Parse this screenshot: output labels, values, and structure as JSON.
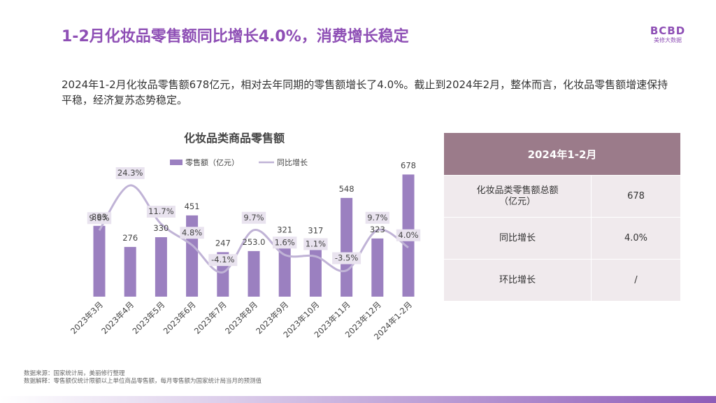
{
  "header": {
    "title": "1-2月化妆品零售额同比增长4.0%，消费增长稳定",
    "logo_mark": "BCBD",
    "logo_sub": "美修大数据"
  },
  "description": "2024年1-2月化妆品零售额678亿元，相对去年同期的零售额增长了4.0%。截止到2024年2月，整体而言，化妆品零售额增速保持平稳，经济复苏态势稳定。",
  "chart_data": {
    "type": "bar+line",
    "title": "化妆品类商品零售额",
    "categories": [
      "2023年3月",
      "2023年4月",
      "2023年5月",
      "2023年6月",
      "2023年7月",
      "2023年8月",
      "2023年9月",
      "2023年10月",
      "2023年11月",
      "2023年12月",
      "2024年1-2月"
    ],
    "series": [
      {
        "name": "零售额（亿元）",
        "type": "bar",
        "values": [
          393,
          276,
          330,
          451,
          247,
          253.0,
          321,
          317,
          548,
          323,
          678
        ],
        "labels": [
          "393",
          "276",
          "330",
          "451",
          "247",
          "253.0",
          "321",
          "317",
          "548",
          "323",
          "678"
        ]
      },
      {
        "name": "同比增长",
        "type": "line",
        "values": [
          9.6,
          24.3,
          11.7,
          4.8,
          -4.1,
          9.7,
          1.6,
          1.1,
          -3.5,
          9.7,
          4.0
        ],
        "labels": [
          "9.6%",
          "24.3%",
          "11.7%",
          "4.8%",
          "-4.1%",
          "9.7%",
          "1.6%",
          "1.1%",
          "-3.5%",
          "9.7%",
          "4.0%"
        ]
      }
    ],
    "ylim_bar": [
      0,
      800
    ],
    "ylim_line": [
      -10,
      30
    ],
    "legend": "top-center",
    "colors": {
      "bar": "#9b80c0",
      "line": "#c0b3d6",
      "label_bg": "#e9e3ef"
    }
  },
  "table": {
    "header": "2024年1-2月",
    "rows": [
      {
        "label_line1": "化妆品类零售额总额",
        "label_line2": "（亿元）",
        "value": "678"
      },
      {
        "label_line1": "同比增长",
        "label_line2": "",
        "value": "4.0%"
      },
      {
        "label_line1": "环比增长",
        "label_line2": "",
        "value": "/"
      }
    ]
  },
  "footnotes": {
    "source": "数据来源：国家统计局，美丽修行整理",
    "explanation": "数据解释：零售额仅统计限额以上单位商品零售额，每月零售额为国家统计局当月的预测值"
  }
}
